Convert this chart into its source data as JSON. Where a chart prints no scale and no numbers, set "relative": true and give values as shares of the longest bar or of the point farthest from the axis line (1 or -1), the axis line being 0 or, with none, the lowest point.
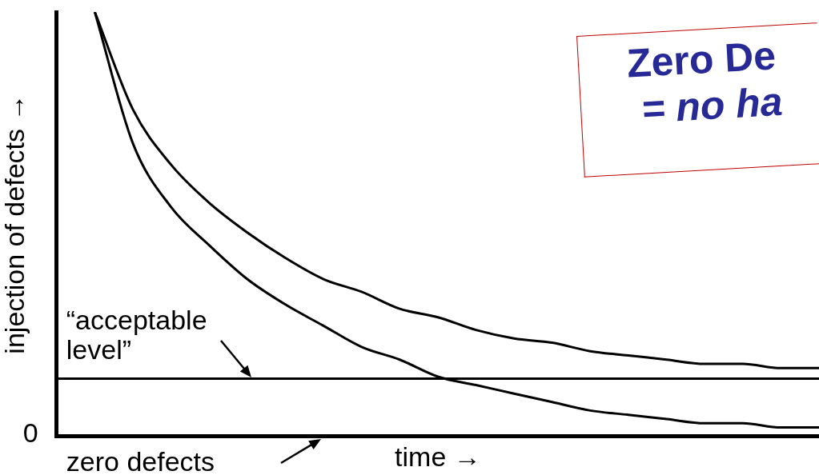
{
  "chart_data": {
    "type": "line",
    "relative": true,
    "xlabel": "time →",
    "ylabel": "injection of defects →",
    "categories": [
      null,
      null,
      null,
      null,
      null,
      null,
      null,
      null,
      null,
      null,
      null,
      null,
      null,
      null,
      null,
      null,
      null,
      null,
      null,
      null,
      null
    ],
    "series": [
      {
        "color": "#000000",
        "values": [
          null,
          1.0,
          0.77,
          0.64,
          0.55,
          0.48,
          0.42,
          0.37,
          0.34,
          0.3,
          0.28,
          0.25,
          0.23,
          0.22,
          0.2,
          0.19,
          0.18,
          0.17,
          0.17,
          0.16,
          0.16
        ]
      },
      {
        "color": "#000000",
        "values": [
          null,
          1.0,
          0.69,
          0.54,
          0.45,
          0.37,
          0.31,
          0.26,
          0.21,
          0.18,
          0.14,
          0.12,
          0.1,
          0.08,
          0.06,
          0.05,
          0.04,
          0.03,
          0.03,
          0.02,
          0.02
        ]
      }
    ],
    "ref_lines": [
      {
        "axis": "y",
        "value": 0.135,
        "label": "“acceptable level”",
        "color": "#000000"
      }
    ],
    "annotations": [
      "0",
      "zero defects",
      "Zero De",
      "=  no ha"
    ],
    "grid": false,
    "legend": false,
    "marker": "none",
    "line_style": "solid"
  }
}
